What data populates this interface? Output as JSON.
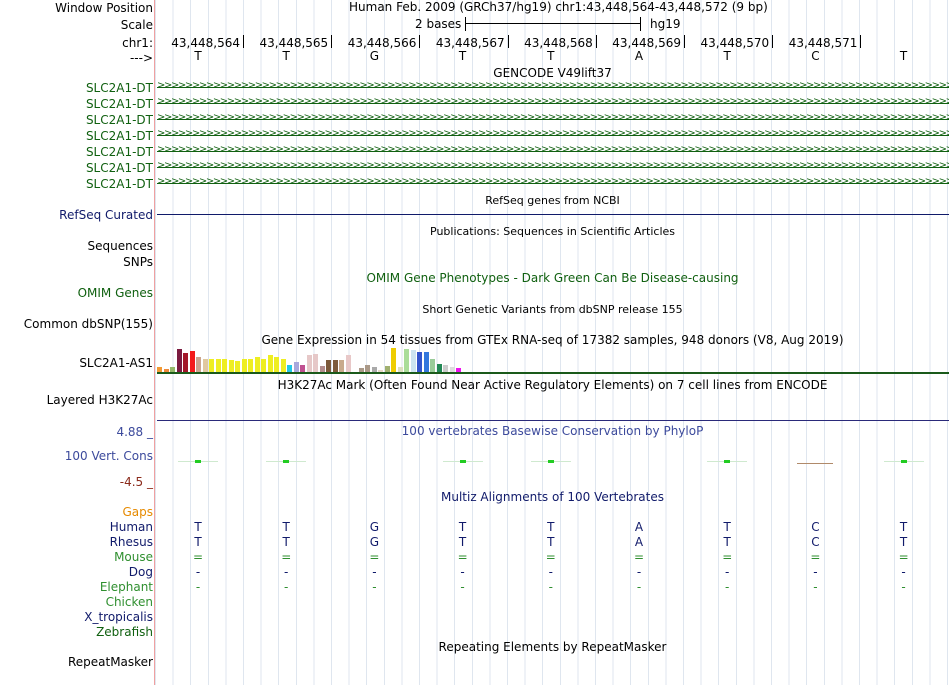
{
  "header": {
    "window_label": "Window Position",
    "window_text": "Human Feb. 2009 (GRCh37/hg19)    chr1:43,448,564-43,448,572 (9 bp)",
    "scale_label": "Scale",
    "scale_text": "2 bases",
    "scale_db": "hg19",
    "chrom_label": "chr1:",
    "positions": [
      "43,448,564",
      "43,448,565",
      "43,448,566",
      "43,448,567",
      "43,448,568",
      "43,448,569",
      "43,448,570",
      "43,448,571"
    ],
    "strand_label": "--->",
    "bases": [
      "T",
      "T",
      "G",
      "T",
      "T",
      "A",
      "T",
      "C",
      "T"
    ]
  },
  "gencode": {
    "title": "GENCODE V49lift37",
    "items": [
      "SLC2A1-DT",
      "SLC2A1-DT",
      "SLC2A1-DT",
      "SLC2A1-DT",
      "SLC2A1-DT",
      "SLC2A1-DT",
      "SLC2A1-DT"
    ],
    "color": "#106010"
  },
  "refseq": {
    "title": "RefSeq genes from NCBI",
    "label": "RefSeq Curated"
  },
  "pubs": {
    "title": "Publications: Sequences in Scientific Articles",
    "label1": "Sequences",
    "label2": "SNPs"
  },
  "omim": {
    "title": "OMIM Gene Phenotypes - Dark Green Can Be Disease-causing",
    "label": "OMIM Genes"
  },
  "dbsnp": {
    "title": "Short Genetic Variants from dbSNP release 155",
    "label": "Common dbSNP(155)"
  },
  "gtex": {
    "title": "Gene Expression in 54 tissues from GTEx RNA-seq of 17382 samples, 948 donors (V8, Aug 2019)",
    "label": "SLC2A1-AS1",
    "bars": [
      {
        "c": "#f29a34",
        "h": 0.2
      },
      {
        "c": "#ef8a3a",
        "h": 0.12
      },
      {
        "c": "#94b86a",
        "h": 0.22
      },
      {
        "c": "#7a1a40",
        "h": 0.95
      },
      {
        "c": "#a2172a",
        "h": 0.78
      },
      {
        "c": "#f31b1b",
        "h": 0.88
      },
      {
        "c": "#cba58f",
        "h": 0.62
      },
      {
        "c": "#e0c8a0",
        "h": 0.55
      },
      {
        "c": "#eeee22",
        "h": 0.55
      },
      {
        "c": "#eeee22",
        "h": 0.55
      },
      {
        "c": "#eeee22",
        "h": 0.55
      },
      {
        "c": "#eeee22",
        "h": 0.5
      },
      {
        "c": "#eeee22",
        "h": 0.45
      },
      {
        "c": "#eeee22",
        "h": 0.55
      },
      {
        "c": "#eeee22",
        "h": 0.55
      },
      {
        "c": "#eeee22",
        "h": 0.62
      },
      {
        "c": "#eeee22",
        "h": 0.55
      },
      {
        "c": "#eeee22",
        "h": 0.7
      },
      {
        "c": "#eeee22",
        "h": 0.62
      },
      {
        "c": "#eeee22",
        "h": 0.55
      },
      {
        "c": "#22c8e6",
        "h": 0.3
      },
      {
        "c": "#a8a8dc",
        "h": 0.4
      },
      {
        "c": "#c05090",
        "h": 0.3
      },
      {
        "c": "#e6c8c8",
        "h": 0.7
      },
      {
        "c": "#e6c8c8",
        "h": 0.75
      },
      {
        "c": "#b48e8e",
        "h": 0.25
      },
      {
        "c": "#7d5a3a",
        "h": 0.5
      },
      {
        "c": "#7d5a3a",
        "h": 0.5
      },
      {
        "c": "#c8aa8c",
        "h": 0.5
      },
      {
        "c": "#e8c8c8",
        "h": 0.7
      },
      {
        "c": "#eeeeee",
        "h": 0.0
      },
      {
        "c": "#aa9988",
        "h": 0.15
      },
      {
        "c": "#aa9988",
        "h": 0.3
      },
      {
        "c": "#aaaaaa",
        "h": 0.2
      },
      {
        "c": "#e8d8c8",
        "h": 0.1
      },
      {
        "c": "#a0b070",
        "h": 0.25
      },
      {
        "c": "#eecc00",
        "h": 1.0
      },
      {
        "c": "#dde0c0",
        "h": 0.2
      },
      {
        "c": "#aadd99",
        "h": 0.95
      },
      {
        "c": "#cce4f0",
        "h": 0.9
      },
      {
        "c": "#3355cc",
        "h": 0.85
      },
      {
        "c": "#3377dd",
        "h": 0.85
      },
      {
        "c": "#99cc99",
        "h": 0.55
      },
      {
        "c": "#228855",
        "h": 0.35
      },
      {
        "c": "#cccccc",
        "h": 0.3
      },
      {
        "c": "#dddddd",
        "h": 0.2
      },
      {
        "c": "#ee11ee",
        "h": 0.18
      },
      {
        "c": "#ffffff",
        "h": 0.0
      }
    ]
  },
  "h3k27ac": {
    "title": "H3K27Ac Mark (Often Found Near Active Regulatory Elements) on 7 cell lines from ENCODE",
    "label": "Layered H3K27Ac"
  },
  "cons": {
    "title": "100 vertebrates Basewise Conservation by PhyloP",
    "label": "100 Vert. Cons",
    "top": "4.88 _",
    "bottom": "-4.5 _"
  },
  "multiz": {
    "title": "Multiz Alignments of 100 Vertebrates",
    "gaps": "Gaps",
    "species": [
      {
        "name": "Human",
        "color": "#101a6a",
        "seq": [
          "T",
          "T",
          "G",
          "T",
          "T",
          "A",
          "T",
          "C",
          "T"
        ]
      },
      {
        "name": "Rhesus",
        "color": "#101a6a",
        "seq": [
          "T",
          "T",
          "G",
          "T",
          "T",
          "A",
          "T",
          "C",
          "T"
        ]
      },
      {
        "name": "Mouse",
        "color": "#2f8f2f",
        "seq": [
          "=",
          "=",
          "=",
          "=",
          "=",
          "=",
          "=",
          "=",
          "="
        ]
      },
      {
        "name": "Dog",
        "color": "#101a6a",
        "seq": [
          "-",
          "-",
          "-",
          "-",
          "-",
          "-",
          "-",
          "-",
          "-"
        ]
      },
      {
        "name": "Elephant",
        "color": "#2f8f2f",
        "seq": [
          "-",
          "-",
          "-",
          "-",
          "-",
          "-",
          "-",
          "-",
          "-"
        ]
      },
      {
        "name": "Chicken",
        "color": "#2f8f2f",
        "seq": [
          "",
          "",
          "",
          "",
          "",
          "",
          "",
          "",
          ""
        ]
      },
      {
        "name": "X_tropicalis",
        "color": "#101a6a",
        "seq": [
          "",
          "",
          "",
          "",
          "",
          "",
          "",
          "",
          ""
        ]
      },
      {
        "name": "Zebrafish",
        "color": "#106010",
        "seq": [
          "",
          "",
          "",
          "",
          "",
          "",
          "",
          "",
          ""
        ]
      }
    ]
  },
  "repeat": {
    "title": "Repeating Elements by RepeatMasker",
    "label": "RepeatMasker"
  }
}
